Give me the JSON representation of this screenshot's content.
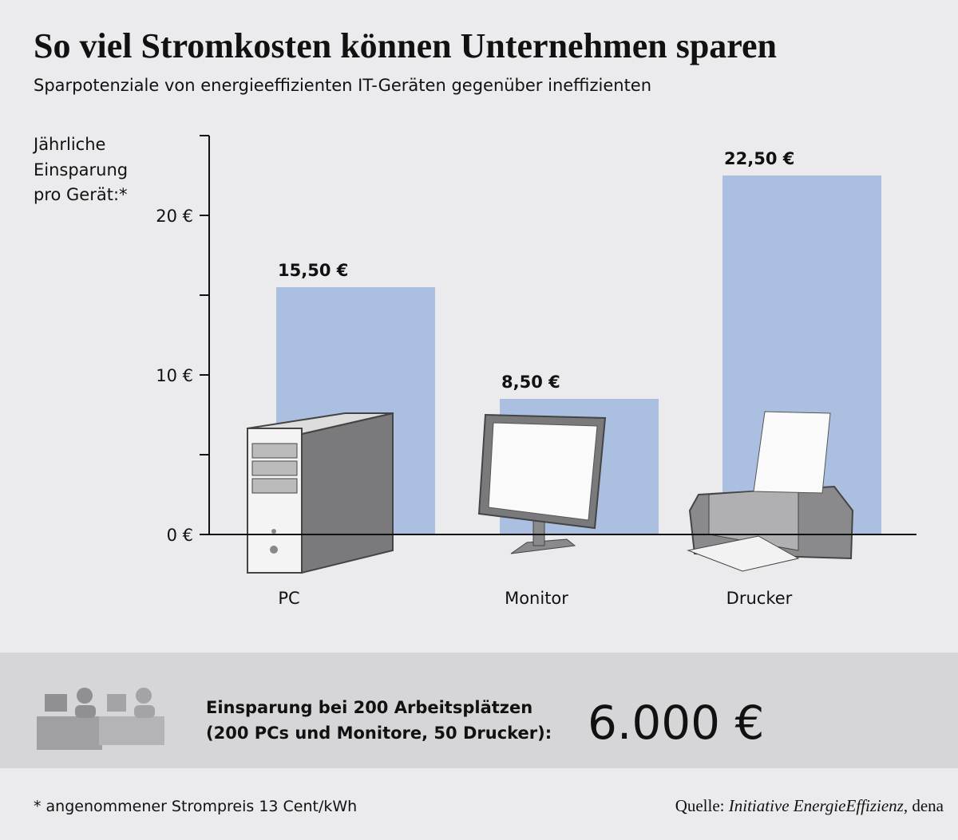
{
  "chart_data": {
    "type": "bar",
    "title": "So viel Stromkosten können Unternehmen sparen",
    "subtitle": "Sparpotenziale von energieeffizienten IT-Geräten gegenüber ineffizienten",
    "ylabel": [
      "Jährliche",
      "Einsparung",
      "pro Gerät:*"
    ],
    "categories": [
      "PC",
      "Monitor",
      "Drucker"
    ],
    "values": [
      15.5,
      8.5,
      22.5
    ],
    "value_labels": [
      "15,50 €",
      "8,50 €",
      "22,50 €"
    ],
    "color": "#abc0e0",
    "ylim": [
      0,
      25
    ],
    "yticks": [
      {
        "value": 0,
        "label": "0 €"
      },
      {
        "value": 10,
        "label": "10 €"
      },
      {
        "value": 20,
        "label": "20 €"
      }
    ],
    "minor_yticks": [
      5,
      15,
      25
    ],
    "grid": false,
    "summary": {
      "lines": [
        "Einsparung bei 200 Arbeitsplätzen",
        "(200 PCs und Monitore, 50 Drucker):"
      ],
      "total": "6.000 €"
    },
    "footnote": "* angenommener Strompreis 13 Cent/kWh",
    "source": {
      "label": "Quelle:",
      "name": "Initiative EnergieEffizienz",
      "rest": ", dena"
    }
  }
}
